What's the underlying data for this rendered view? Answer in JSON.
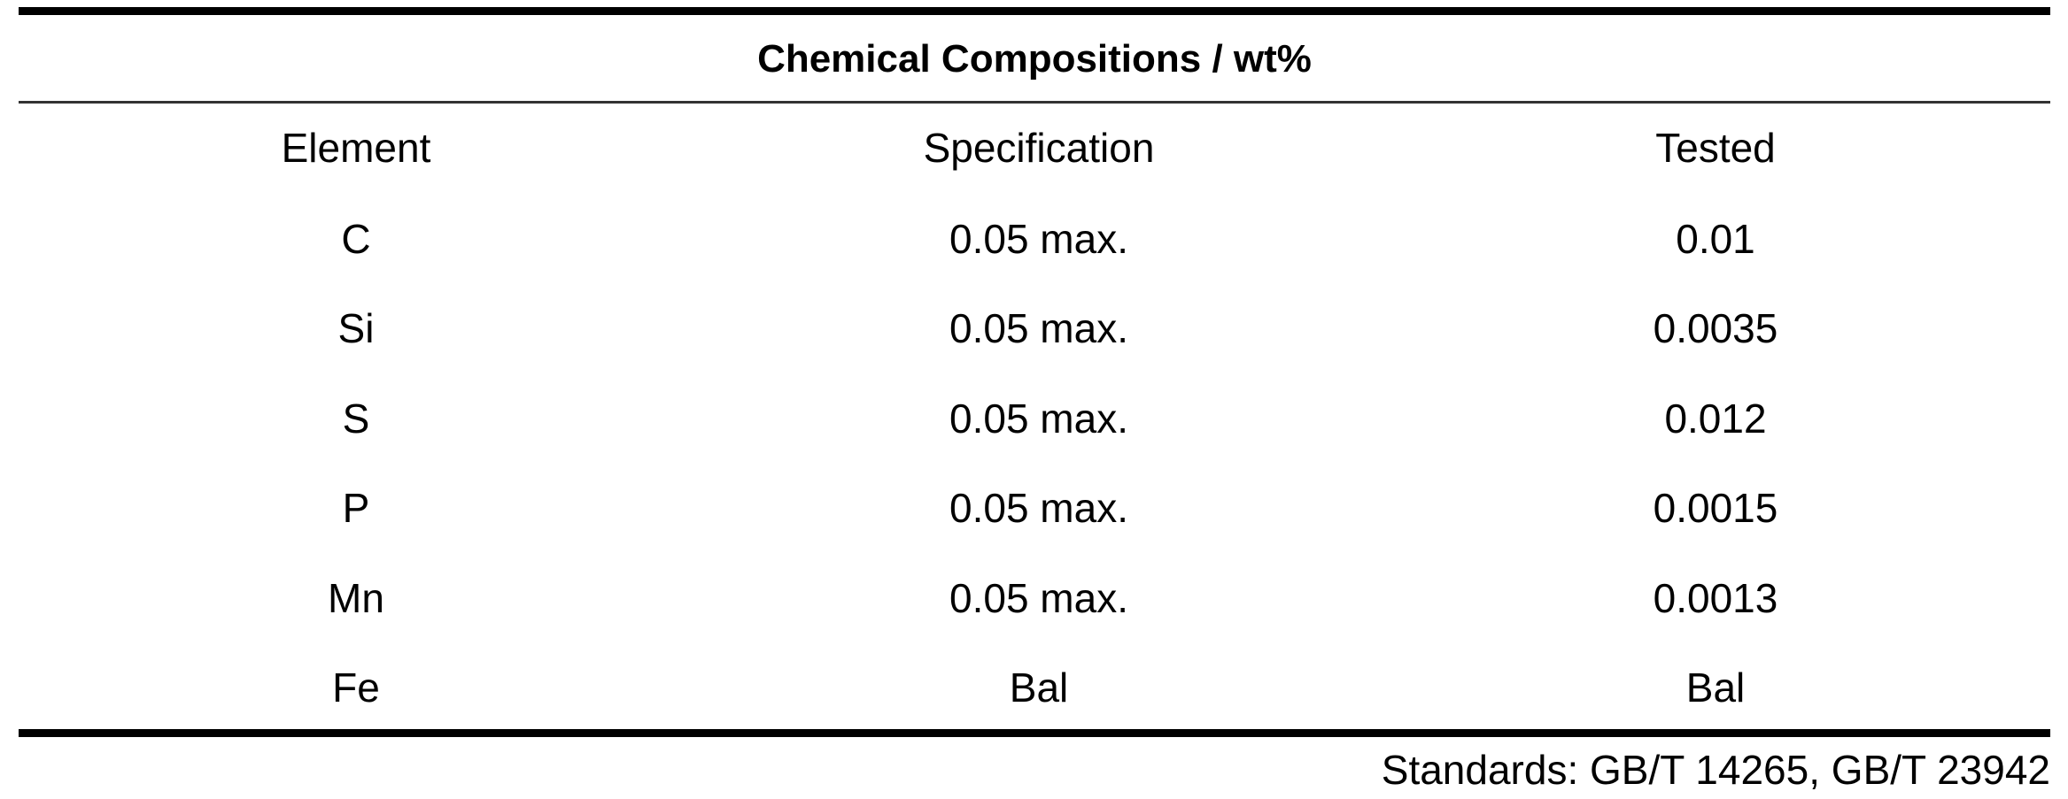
{
  "table": {
    "title": "Chemical Compositions / wt%",
    "columns": [
      "Element",
      "Specification",
      "Tested"
    ],
    "rows": [
      [
        "C",
        "0.05 max.",
        "0.01"
      ],
      [
        "Si",
        "0.05 max.",
        "0.0035"
      ],
      [
        "S",
        "0.05 max.",
        "0.012"
      ],
      [
        "P",
        "0.05 max.",
        "0.0015"
      ],
      [
        "Mn",
        "0.05 max.",
        "0.0013"
      ],
      [
        "Fe",
        "Bal",
        "Bal"
      ]
    ],
    "footer": "Standards: GB/T 14265, GB/T 23942"
  }
}
